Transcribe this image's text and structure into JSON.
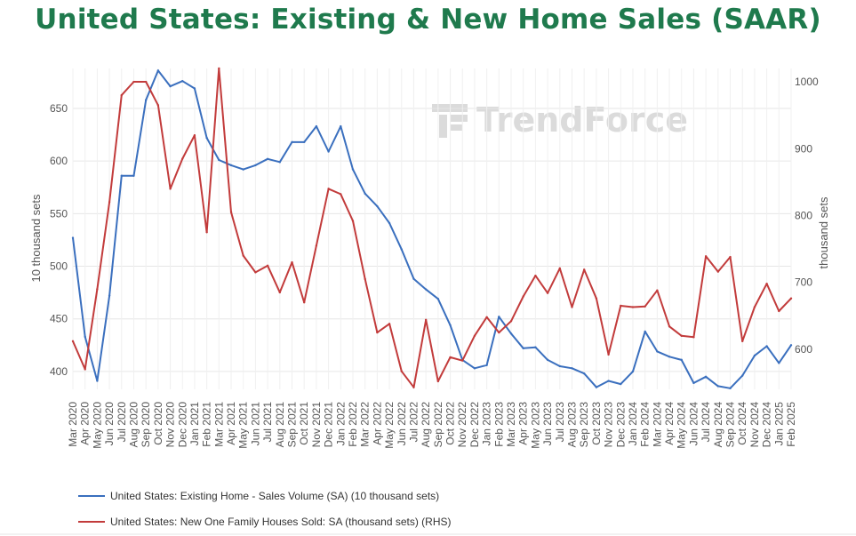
{
  "title": "United States: Existing & New Home Sales (SAAR)",
  "watermark": "TrendForce",
  "chart_data": {
    "type": "line",
    "title": "United States: Existing & New Home Sales (SAAR)",
    "ylabel_left": "10 thousand sets",
    "ylabel_right": "thousand sets",
    "ylim_left": [
      383,
      688
    ],
    "ylim_right": [
      540,
      1020
    ],
    "yticks_left": [
      "400",
      "450",
      "500",
      "550",
      "600",
      "650"
    ],
    "yticks_right": [
      "600",
      "700",
      "800",
      "900",
      "1000"
    ],
    "grid": true,
    "categories": [
      "Mar 2020",
      "Apr 2020",
      "May 2020",
      "Jun 2020",
      "Jul 2020",
      "Aug 2020",
      "Sep 2020",
      "Oct 2020",
      "Nov 2020",
      "Dec 2020",
      "Jan 2021",
      "Feb 2021",
      "Mar 2021",
      "Apr 2021",
      "May 2021",
      "Jun 2021",
      "Jul 2021",
      "Aug 2021",
      "Sep 2021",
      "Oct 2021",
      "Nov 2021",
      "Dec 2021",
      "Jan 2022",
      "Feb 2022",
      "Mar 2022",
      "Apr 2022",
      "May 2022",
      "Jun 2022",
      "Jul 2022",
      "Aug 2022",
      "Sep 2022",
      "Oct 2022",
      "Nov 2022",
      "Dec 2022",
      "Jan 2023",
      "Feb 2023",
      "Mar 2023",
      "Apr 2023",
      "May 2023",
      "Jun 2023",
      "Jul 2023",
      "Aug 2023",
      "Sep 2023",
      "Oct 2023",
      "Nov 2023",
      "Dec 2023",
      "Jan 2024",
      "Feb 2024",
      "Mar 2024",
      "Apr 2024",
      "May 2024",
      "Jun 2024",
      "Jul 2024",
      "Aug 2024",
      "Sep 2024",
      "Oct 2024",
      "Nov 2024",
      "Dec 2024",
      "Jan 2025",
      "Feb 2025"
    ],
    "series": [
      {
        "name": "United States: Existing Home - Sales Volume (SA) (10 thousand sets)",
        "axis": "left",
        "color": "#3a6fbe",
        "values": [
          527,
          433,
          391,
          472,
          586,
          586,
          658,
          686,
          671,
          676,
          669,
          622,
          601,
          596,
          592,
          596,
          602,
          599,
          618,
          618,
          633,
          609,
          633,
          592,
          569,
          557,
          541,
          516,
          488,
          478,
          469,
          444,
          411,
          403,
          406,
          452,
          436,
          422,
          423,
          411,
          405,
          403,
          398,
          385,
          391,
          388,
          400,
          438,
          419,
          414,
          411,
          389,
          395,
          386,
          384,
          396,
          415,
          424,
          408,
          425
        ]
      },
      {
        "name": "United States: New One Family Houses Sold: SA (thousand sets) (RHS)",
        "axis": "right",
        "color": "#c23b3b",
        "values": [
          612,
          570,
          690,
          820,
          980,
          1000,
          1000,
          965,
          840,
          885,
          920,
          775,
          1020,
          805,
          740,
          715,
          725,
          685,
          730,
          670,
          755,
          840,
          832,
          792,
          705,
          625,
          638,
          567,
          543,
          644,
          552,
          588,
          583,
          620,
          648,
          625,
          642,
          679,
          710,
          684,
          721,
          663,
          719,
          676,
          592,
          665,
          663,
          664,
          688,
          634,
          620,
          618,
          739,
          716,
          738,
          612,
          663,
          698,
          657,
          676
        ]
      }
    ],
    "legend": [
      "United States: Existing Home - Sales Volume (SA) (10 thousand sets)",
      "United States: New One Family Houses Sold: SA (thousand sets) (RHS)"
    ],
    "legend_position": "bottom-left"
  }
}
